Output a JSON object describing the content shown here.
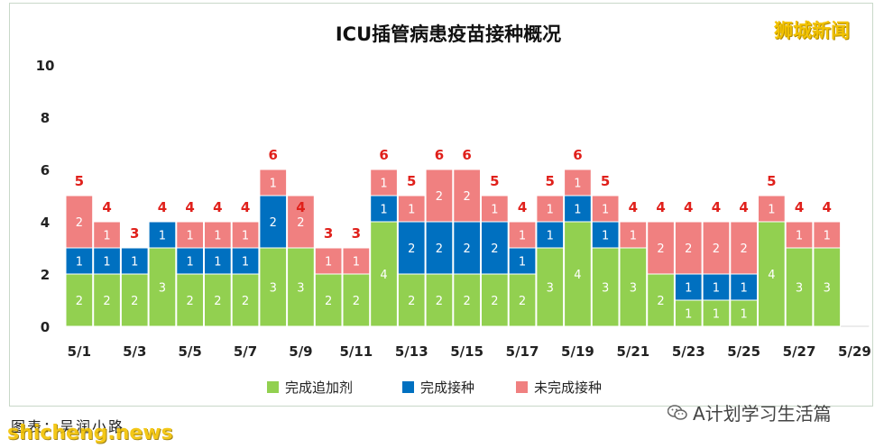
{
  "watermarks": {
    "brand": "狮城新闻",
    "credit": "图表：吴润小路",
    "site": "shicheng.news",
    "wechat": "A计划学习生活篇"
  },
  "colors": {
    "booster": "#92d050",
    "vaccinated": "#0070c0",
    "unvaccinated": "#f08080",
    "total_label": "#e0201b"
  },
  "chart_data": {
    "type": "bar",
    "stacked": true,
    "title": "ICU插管病患疫苗接种概况",
    "xlabel": "",
    "ylabel": "",
    "ylim": [
      0,
      10
    ],
    "yticks": [
      "0",
      "2",
      "4",
      "6",
      "8",
      "10"
    ],
    "grid": false,
    "legend_position": "bottom",
    "categories": [
      "5/1",
      "5/2",
      "5/3",
      "5/4",
      "5/5",
      "5/6",
      "5/7",
      "5/8",
      "5/9",
      "5/10",
      "5/11",
      "5/12",
      "5/13",
      "5/14",
      "5/15",
      "5/16",
      "5/17",
      "5/18",
      "5/19",
      "5/20",
      "5/21",
      "5/22",
      "5/23",
      "5/24",
      "5/25",
      "5/26",
      "5/27",
      "5/28",
      "5/29"
    ],
    "xtick_labels": [
      "5/1",
      "",
      "5/3",
      "",
      "5/5",
      "",
      "5/7",
      "",
      "5/9",
      "",
      "5/11",
      "",
      "5/13",
      "",
      "5/15",
      "",
      "5/17",
      "",
      "5/19",
      "",
      "5/21",
      "",
      "5/23",
      "",
      "5/25",
      "",
      "5/27",
      "",
      "5/29"
    ],
    "series": [
      {
        "name": "完成追加剂",
        "color_key": "booster",
        "values": [
          2,
          2,
          2,
          3,
          2,
          2,
          2,
          3,
          3,
          2,
          2,
          4,
          2,
          2,
          2,
          2,
          2,
          3,
          4,
          3,
          3,
          2,
          1,
          1,
          1,
          4,
          3,
          3,
          null
        ]
      },
      {
        "name": "完成接种",
        "color_key": "vaccinated",
        "values": [
          1,
          1,
          1,
          1,
          1,
          1,
          1,
          2,
          0,
          0,
          0,
          1,
          2,
          2,
          2,
          2,
          1,
          1,
          1,
          1,
          0,
          0,
          1,
          1,
          1,
          0,
          0,
          0,
          null
        ]
      },
      {
        "name": "未完成接种",
        "color_key": "unvaccinated",
        "values": [
          2,
          1,
          0,
          0,
          1,
          1,
          1,
          1,
          2,
          1,
          1,
          1,
          1,
          2,
          2,
          1,
          1,
          1,
          1,
          1,
          1,
          2,
          2,
          2,
          2,
          1,
          1,
          1,
          null
        ]
      }
    ],
    "totals": [
      5,
      4,
      3,
      4,
      4,
      4,
      4,
      6,
      4,
      3,
      3,
      6,
      5,
      6,
      6,
      5,
      4,
      5,
      6,
      5,
      4,
      4,
      4,
      4,
      4,
      5,
      4,
      4,
      null
    ]
  }
}
